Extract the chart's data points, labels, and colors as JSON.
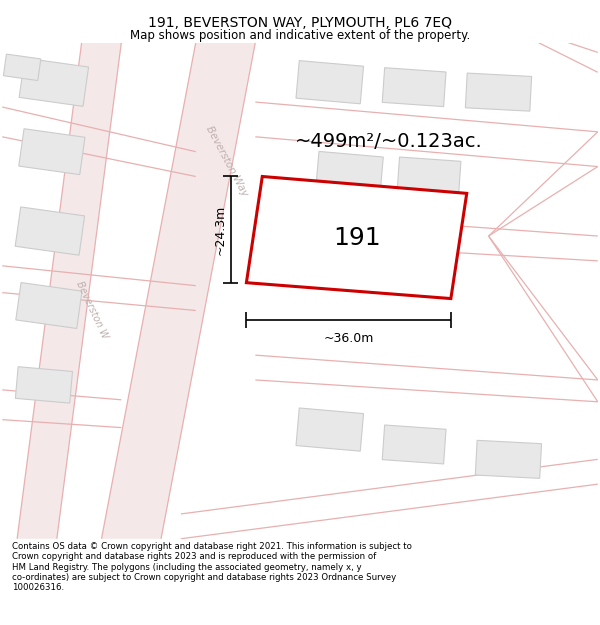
{
  "title": "191, BEVERSTON WAY, PLYMOUTH, PL6 7EQ",
  "subtitle": "Map shows position and indicative extent of the property.",
  "area_label": "~499m²/~0.123ac.",
  "property_number": "191",
  "width_label": "~36.0m",
  "height_label": "~24.3m",
  "footer": "Contains OS data © Crown copyright and database right 2021. This information is subject to Crown copyright and database rights 2023 and is reproduced with the permission of HM Land Registry. The polygons (including the associated geometry, namely x, y co-ordinates) are subject to Crown copyright and database rights 2023 Ordnance Survey 100026316.",
  "bg_color": "#ffffff",
  "map_bg": "#ffffff",
  "road_fill": "#f5e8e8",
  "road_line": "#e8b0b0",
  "building_fill": "#e8e8e8",
  "building_edge": "#cccccc",
  "property_edge": "#cc0000",
  "road_label_color": "#c0b0b0",
  "title_color": "#000000",
  "footer_color": "#000000",
  "title_fontsize": 10,
  "subtitle_fontsize": 8.5,
  "area_fontsize": 14,
  "number_fontsize": 18,
  "dim_fontsize": 9,
  "footer_fontsize": 6.2
}
